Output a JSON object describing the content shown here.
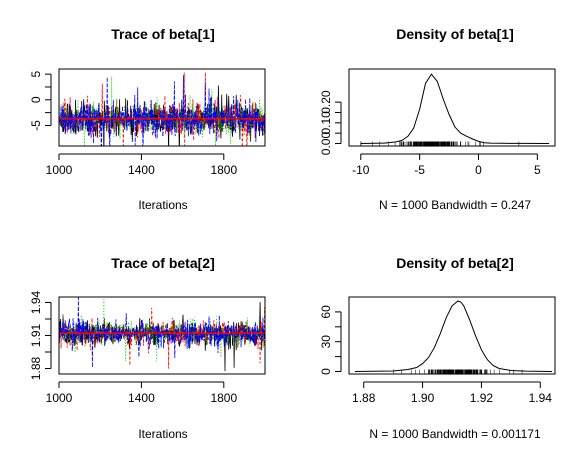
{
  "chart_data": [
    {
      "type": "line",
      "title": "Trace of beta[1]",
      "xlabel": "Iterations",
      "ylabel": "",
      "xlim": [
        1000,
        2000
      ],
      "ylim": [
        -9,
        6
      ],
      "xticks": [
        "1000",
        "1400",
        "1800"
      ],
      "xtick_values": [
        1000,
        1400,
        1800
      ],
      "yticks": [
        "5",
        "0",
        "-5"
      ],
      "ytick_values": [
        5,
        0,
        -5
      ],
      "center": -3.7,
      "spread": 1.6,
      "series": [
        {
          "color": "#000000"
        },
        {
          "color": "#ff0000"
        },
        {
          "color": "#00cd00"
        },
        {
          "color": "#0000ff"
        }
      ],
      "reference_line_color": "#ff0000"
    },
    {
      "type": "line",
      "title": "Density of beta[1]",
      "xlabel": "N = 1000   Bandwidth = 0.247",
      "ylabel": "",
      "xlim": [
        -11,
        6.5
      ],
      "ylim": [
        -0.012,
        0.36
      ],
      "xticks": [
        "-10",
        "-5",
        "0",
        "5"
      ],
      "xtick_values": [
        -10,
        -5,
        0,
        5
      ],
      "yticks": [
        "0.00",
        "0.10",
        "0.20"
      ],
      "ytick_values": [
        0,
        0.1,
        0.2
      ],
      "curve": {
        "x": [
          -10,
          -8,
          -7,
          -6.5,
          -6,
          -5.5,
          -5,
          -4.5,
          -4,
          -3.5,
          -3,
          -2.5,
          -2,
          -1.5,
          -1,
          -0.5,
          0,
          0.5,
          1,
          2,
          4,
          6
        ],
        "y": [
          0.0,
          0.002,
          0.008,
          0.015,
          0.035,
          0.075,
          0.165,
          0.29,
          0.335,
          0.3,
          0.215,
          0.14,
          0.08,
          0.05,
          0.035,
          0.022,
          0.01,
          0.004,
          0.002,
          0.001,
          0.0005,
          0.0
        ]
      }
    },
    {
      "type": "line",
      "title": "Trace of beta[2]",
      "xlabel": "Iterations",
      "ylabel": "",
      "xlim": [
        1000,
        2000
      ],
      "ylim": [
        1.875,
        1.945
      ],
      "xticks": [
        "1000",
        "1400",
        "1800"
      ],
      "xtick_values": [
        1000,
        1400,
        1800
      ],
      "yticks": [
        "1.88",
        "1.91",
        "1.94"
      ],
      "ytick_values": [
        1.88,
        1.91,
        1.94
      ],
      "center": 1.912,
      "spread": 0.0058,
      "series": [
        {
          "color": "#000000"
        },
        {
          "color": "#ff0000"
        },
        {
          "color": "#00cd00"
        },
        {
          "color": "#0000ff"
        }
      ],
      "reference_line_color": "#ff0000"
    },
    {
      "type": "line",
      "title": "Density of beta[2]",
      "xlabel": "N = 1000   Bandwidth = 0.001171",
      "ylabel": "",
      "xlim": [
        1.875,
        1.945
      ],
      "ylim": [
        -2.5,
        75
      ],
      "xticks": [
        "1.88",
        "1.90",
        "1.92",
        "1.94"
      ],
      "xtick_values": [
        1.88,
        1.9,
        1.92,
        1.94
      ],
      "yticks": [
        "0",
        "30",
        "60"
      ],
      "ytick_values": [
        0,
        30,
        60
      ],
      "curve": {
        "x": [
          1.877,
          1.89,
          1.895,
          1.898,
          1.9,
          1.902,
          1.904,
          1.906,
          1.908,
          1.91,
          1.912,
          1.913,
          1.914,
          1.916,
          1.918,
          1.92,
          1.922,
          1.924,
          1.926,
          1.93,
          1.935,
          1.944
        ],
        "y": [
          0.0,
          0.5,
          2.0,
          4.0,
          8.0,
          14.0,
          24.0,
          38.0,
          54.0,
          66.0,
          71.0,
          70.0,
          66.0,
          52.0,
          36.0,
          22.0,
          12.0,
          6.0,
          3.0,
          1.0,
          0.4,
          0.0
        ]
      }
    }
  ]
}
